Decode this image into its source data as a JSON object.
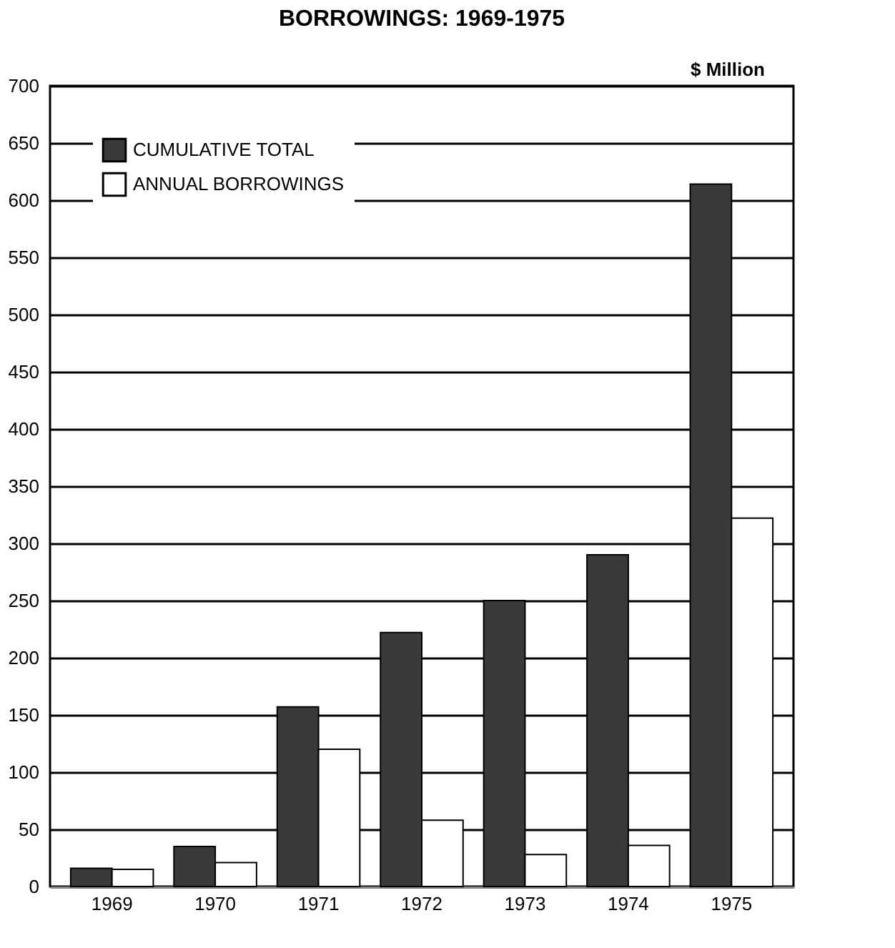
{
  "chart_data": {
    "type": "bar",
    "title": "BORROWINGS: 1969-1975",
    "categories": [
      "1969",
      "1970",
      "1971",
      "1972",
      "1973",
      "1974",
      "1975"
    ],
    "series": [
      {
        "name": "CUMULATIVE TOTAL",
        "color": "#3a3a3a",
        "values": [
          16,
          35,
          157,
          222,
          250,
          290,
          614
        ]
      },
      {
        "name": "ANNUAL BORROWINGS",
        "color": "#ffffff",
        "values": [
          15,
          21,
          120,
          58,
          28,
          36,
          322
        ]
      }
    ],
    "ylim": [
      0,
      700
    ],
    "yticks": [
      0,
      50,
      100,
      150,
      200,
      250,
      300,
      350,
      400,
      450,
      500,
      550,
      600,
      650,
      700
    ],
    "grid": "y",
    "legend": "top left",
    "annotations": [
      "$ Million"
    ]
  }
}
